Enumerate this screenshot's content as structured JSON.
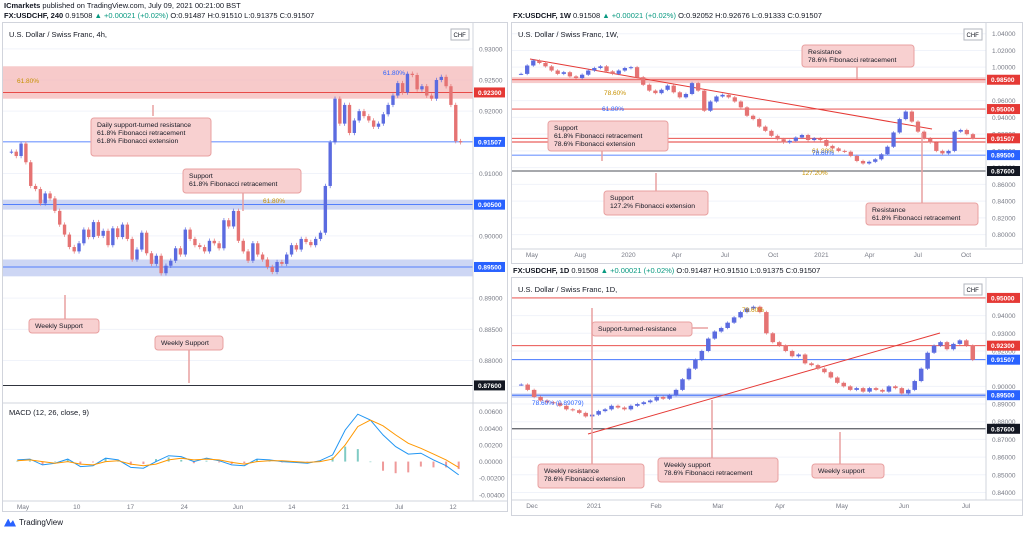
{
  "header": {
    "broker": "ICmarkets",
    "published": "published on TradingView.com, July 09, 2021 00:21:00 BST",
    "symbol": "FX:USDCHF, 240",
    "price": "0.91508",
    "change": "▲ +0.00021 (+0.02%)",
    "ohlc": "O:0.91487 H:0.91510 L:0.91375 C:0.91507"
  },
  "branding": {
    "label": "TradingView"
  },
  "colors": {
    "resistance_zone": "#f4b4b4",
    "support_zone": "#b8c4f0",
    "red_line": "#e53935",
    "blue_line": "#2962ff",
    "bull": "#5b6be0",
    "bear": "#e57373",
    "macd": "#2196f3",
    "signal": "#ff9800"
  },
  "chart_data": [
    {
      "type": "candlestick",
      "id": "h4",
      "title": "U.S. Dollar / Swiss Franc, 4h,",
      "currency": "CHF",
      "ylim": [
        0.8735,
        0.9335
      ],
      "y_ticks": [
        "0.93000",
        "0.92500",
        "0.92000",
        "0.91000",
        "0.90000",
        "0.89000",
        "0.88500",
        "0.88000"
      ],
      "x_ticks": [
        "May",
        "10",
        "17",
        "24",
        "Jun",
        "14",
        "21",
        "Jul",
        "12"
      ],
      "price_tags": [
        {
          "value": 0.923,
          "label": "0.92300",
          "color": "#e53935"
        },
        {
          "value": 0.91507,
          "label": "0.91507",
          "color": "#2962ff"
        },
        {
          "value": 0.905,
          "label": "0.90500",
          "color": "#2962ff"
        },
        {
          "value": 0.895,
          "label": "0.89500",
          "color": "#2962ff"
        },
        {
          "value": 0.876,
          "label": "0.87600",
          "color": "#131722"
        }
      ],
      "annotations": [
        {
          "text": [
            "Daily support-turned resistance",
            "61.8% Fibonacci retracement",
            "61.8% Fibonacci extension"
          ]
        },
        {
          "text": [
            "Support",
            "61.8% Fibonacci retracement"
          ]
        },
        {
          "text": [
            "Weekly Support"
          ]
        },
        {
          "text": [
            "Weekly Support"
          ]
        }
      ],
      "fib_labels": [
        "61.80%",
        "61.80%",
        "61.80%"
      ],
      "series_close": [
        0.9135,
        0.9128,
        0.9148,
        0.9118,
        0.908,
        0.9075,
        0.9052,
        0.9068,
        0.906,
        0.904,
        0.9018,
        0.9002,
        0.8982,
        0.8975,
        0.8988,
        0.901,
        0.8998,
        0.9022,
        0.9,
        0.9008,
        0.8985,
        0.9012,
        0.8998,
        0.9018,
        0.8995,
        0.8962,
        0.8978,
        0.9005,
        0.8972,
        0.8955,
        0.8968,
        0.894,
        0.8952,
        0.896,
        0.898,
        0.897,
        0.901,
        0.8995,
        0.8985,
        0.8982,
        0.8975,
        0.8992,
        0.8988,
        0.898,
        0.9025,
        0.9015,
        0.904,
        0.8992,
        0.8975,
        0.896,
        0.8988,
        0.897,
        0.8962,
        0.895,
        0.8942,
        0.8958,
        0.8955,
        0.897,
        0.8985,
        0.8978,
        0.8995,
        0.899,
        0.8985,
        0.8995,
        0.9005,
        0.908,
        0.915,
        0.922,
        0.918,
        0.921,
        0.9165,
        0.9185,
        0.92,
        0.9192,
        0.9185,
        0.9175,
        0.918,
        0.9195,
        0.921,
        0.9225,
        0.9245,
        0.923,
        0.926,
        0.9258,
        0.9235,
        0.924,
        0.9225,
        0.922,
        0.925,
        0.9255,
        0.924,
        0.921,
        0.9152,
        0.915
      ]
    },
    {
      "type": "line",
      "id": "macd",
      "title": "MACD (12, 26, close, 9)",
      "ylim": [
        -0.0045,
        0.0068
      ],
      "y_ticks": [
        "0.00600",
        "0.00400",
        "0.00200",
        "0.00000",
        "-0.00200",
        "-0.00400"
      ],
      "macd": [
        0.0002,
        0.0003,
        -0.0004,
        -0.0002,
        0.0003,
        -0.0006,
        -0.0005,
        0.0004,
        0.0002,
        -0.0007,
        -0.0008,
        0.0,
        0.0007,
        0.0006,
        0.0,
        0.0004,
        0.0001,
        -0.0004,
        -0.0005,
        0.0003,
        0.0002,
        0.0,
        -0.0001,
        -0.0002,
        0.0001,
        0.0008,
        0.0038,
        0.0057,
        0.005,
        0.0032,
        0.0018,
        0.0009,
        0.001,
        0.0002,
        -0.0005,
        -0.0016
      ],
      "signal": [
        0.0001,
        0.0002,
        0.0,
        -0.0002,
        0.0,
        -0.0003,
        -0.0004,
        0.0,
        0.0001,
        -0.0003,
        -0.0005,
        -0.0003,
        0.0002,
        0.0004,
        0.0002,
        0.0003,
        0.0002,
        -0.0001,
        -0.0003,
        0.0,
        0.0001,
        0.0001,
        0.0,
        -0.0001,
        0.0,
        0.0003,
        0.002,
        0.0042,
        0.005,
        0.0043,
        0.0032,
        0.0022,
        0.0016,
        0.0009,
        0.0002,
        -0.0007
      ]
    },
    {
      "type": "candlestick",
      "id": "w1",
      "title": "U.S. Dollar / Swiss Franc, 1W,",
      "header": {
        "symbol": "FX:USDCHF, 1W",
        "price": "0.91508",
        "change": "▲ +0.00021 (+0.02%)",
        "ohlc": "O:0.92052 H:0.92676 L:0.91333 C:0.91507"
      },
      "currency": "CHF",
      "ylim": [
        0.79,
        1.048
      ],
      "y_ticks": [
        "1.04000",
        "1.02000",
        "1.00000",
        "0.96000",
        "0.94000",
        "0.92000",
        "0.90000",
        "0.88000",
        "0.86000",
        "0.84000",
        "0.82000",
        "0.80000"
      ],
      "x_ticks": [
        "May",
        "Aug",
        "2020",
        "Apr",
        "Jul",
        "Oct",
        "2021",
        "Apr",
        "Jul",
        "Oct"
      ],
      "price_tags": [
        {
          "value": 0.985,
          "label": "0.98500",
          "color": "#e53935"
        },
        {
          "value": 0.95,
          "label": "0.95000",
          "color": "#e53935"
        },
        {
          "value": 0.91507,
          "label": "0.91507",
          "color": "#e53935"
        },
        {
          "value": 0.895,
          "label": "0.89500",
          "color": "#2962ff"
        },
        {
          "value": 0.876,
          "label": "0.87600",
          "color": "#131722"
        }
      ],
      "annotations": [
        {
          "text": [
            "Resistance",
            "78.6% Fibonacci retracement"
          ]
        },
        {
          "text": [
            "Support",
            "61.8% Fibonacci retracement",
            "78.6% Fibonacci extension"
          ]
        },
        {
          "text": [
            "Support",
            "127.2% Fibonacci extension"
          ]
        },
        {
          "text": [
            "Resistance",
            "61.8% Fibonacci retracement"
          ]
        }
      ],
      "fib_labels": [
        "78.60%",
        "61.80%",
        "61.80%",
        "78.60%",
        "127.20%"
      ],
      "series_close": [
        0.992,
        1.002,
        1.008,
        1.005,
        1.001,
        0.996,
        0.992,
        0.994,
        0.989,
        0.987,
        0.991,
        0.996,
        0.999,
        1.001,
        0.995,
        0.992,
        0.996,
        0.999,
        1.0,
        0.988,
        0.979,
        0.972,
        0.969,
        0.973,
        0.978,
        0.97,
        0.964,
        0.968,
        0.981,
        0.972,
        0.948,
        0.959,
        0.965,
        0.967,
        0.964,
        0.959,
        0.952,
        0.942,
        0.938,
        0.929,
        0.924,
        0.918,
        0.914,
        0.91,
        0.912,
        0.916,
        0.919,
        0.913,
        0.915,
        0.913,
        0.906,
        0.903,
        0.9,
        0.899,
        0.894,
        0.888,
        0.885,
        0.887,
        0.89,
        0.896,
        0.905,
        0.922,
        0.938,
        0.947,
        0.935,
        0.923,
        0.915,
        0.91,
        0.9,
        0.897,
        0.9,
        0.923,
        0.925,
        0.92,
        0.915
      ]
    },
    {
      "type": "candlestick",
      "id": "d1",
      "title": "U.S. Dollar / Swiss Franc, 1D,",
      "header": {
        "symbol": "FX:USDCHF, 1D",
        "price": "0.91508",
        "change": "▲ +0.00021 (+0.02%)",
        "ohlc": "O:0.91487 H:0.91510 L:0.91375 C:0.91507"
      },
      "currency": "CHF",
      "ylim": [
        0.838,
        0.959
      ],
      "y_ticks": [
        "0.94000",
        "0.93000",
        "0.92000",
        "0.90000",
        "0.89000",
        "0.88000",
        "0.87000",
        "0.86000",
        "0.85000",
        "0.84000"
      ],
      "x_ticks": [
        "Dec",
        "2021",
        "Feb",
        "Mar",
        "Apr",
        "May",
        "Jun",
        "Jul"
      ],
      "price_tags": [
        {
          "value": 0.95,
          "label": "0.95000",
          "color": "#e53935"
        },
        {
          "value": 0.923,
          "label": "0.92300",
          "color": "#e53935"
        },
        {
          "value": 0.91507,
          "label": "0.91507",
          "color": "#2962ff"
        },
        {
          "value": 0.895,
          "label": "0.89500",
          "color": "#2962ff"
        },
        {
          "value": 0.876,
          "label": "0.87600",
          "color": "#131722"
        }
      ],
      "annotations": [
        {
          "text": [
            "Support-turned-resistance"
          ]
        },
        {
          "text": [
            "Weekly resistance",
            "78.6% Fibonacci extension"
          ]
        },
        {
          "text": [
            "Weekly support",
            "78.6% Fibonacci retracement"
          ]
        },
        {
          "text": [
            "Weekly support"
          ]
        }
      ],
      "fib_labels": [
        "78.60%",
        "78.60% (0.89079)"
      ],
      "series_close": [
        0.901,
        0.898,
        0.894,
        0.892,
        0.891,
        0.8905,
        0.889,
        0.887,
        0.8865,
        0.885,
        0.883,
        0.884,
        0.886,
        0.887,
        0.889,
        0.888,
        0.887,
        0.889,
        0.89,
        0.891,
        0.892,
        0.894,
        0.893,
        0.895,
        0.898,
        0.904,
        0.91,
        0.915,
        0.92,
        0.927,
        0.931,
        0.933,
        0.936,
        0.939,
        0.942,
        0.944,
        0.945,
        0.942,
        0.93,
        0.925,
        0.923,
        0.92,
        0.917,
        0.918,
        0.913,
        0.912,
        0.91,
        0.908,
        0.905,
        0.902,
        0.9,
        0.898,
        0.899,
        0.897,
        0.899,
        0.898,
        0.897,
        0.9,
        0.899,
        0.896,
        0.898,
        0.903,
        0.91,
        0.919,
        0.923,
        0.925,
        0.921,
        0.924,
        0.926,
        0.923,
        0.915
      ]
    }
  ]
}
